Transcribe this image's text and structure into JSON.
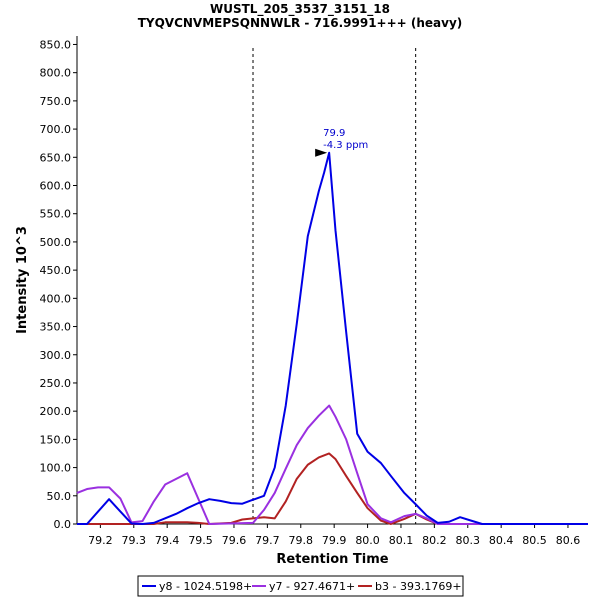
{
  "chart_data": {
    "type": "line",
    "title": "WUSTL_205_3537_3151_18",
    "subtitle": "TYQVCNVMEPSQNNWLR - 716.9991+++ (heavy)",
    "xlabel": "Retention Time",
    "ylabel": "Intensity 10^3",
    "xlim": [
      79.13,
      80.66
    ],
    "ylim": [
      0,
      865
    ],
    "x_ticks": [
      79.2,
      79.3,
      79.4,
      79.5,
      79.6,
      79.7,
      79.8,
      79.9,
      80.0,
      80.1,
      80.2,
      80.3,
      80.4,
      80.5,
      80.6
    ],
    "x_tick_labels": [
      "79.2",
      "79.3",
      "79.4",
      "79.5",
      "79.6",
      "79.7",
      "79.8",
      "79.9",
      "80.0",
      "80.1",
      "80.2",
      "80.3",
      "80.4",
      "80.5",
      "80.6"
    ],
    "y_ticks": [
      0,
      50,
      100,
      150,
      200,
      250,
      300,
      350,
      400,
      450,
      500,
      550,
      600,
      650,
      700,
      750,
      800,
      850
    ],
    "y_tick_labels": [
      "0.0",
      "50.0",
      "100.0",
      "150.0",
      "200.0",
      "250.0",
      "300.0",
      "350.0",
      "400.0",
      "450.0",
      "500.0",
      "550.0",
      "600.0",
      "650.0",
      "700.0",
      "750.0",
      "800.0",
      "850.0"
    ],
    "grid": false,
    "legend_position": "bottom",
    "integration_boundaries": [
      79.657,
      80.144
    ],
    "peak_annotation": {
      "x": 79.885,
      "y": 658,
      "label_rt": "79.9",
      "label_ppm": "-4.3 ppm",
      "color": "#0000cc"
    },
    "series": [
      {
        "name": "y8 - 1024.5198+",
        "color": "#0000e6",
        "points": [
          [
            79.13,
            0
          ],
          [
            79.16,
            0
          ],
          [
            79.193,
            22
          ],
          [
            79.226,
            44
          ],
          [
            79.26,
            22
          ],
          [
            79.293,
            1
          ],
          [
            79.326,
            0
          ],
          [
            79.36,
            2
          ],
          [
            79.394,
            10
          ],
          [
            79.427,
            18
          ],
          [
            79.46,
            28
          ],
          [
            79.493,
            37
          ],
          [
            79.526,
            44
          ],
          [
            79.559,
            41
          ],
          [
            79.592,
            37
          ],
          [
            79.625,
            36
          ],
          [
            79.657,
            43
          ],
          [
            79.69,
            50
          ],
          [
            79.722,
            100
          ],
          [
            79.755,
            210
          ],
          [
            79.788,
            355
          ],
          [
            79.821,
            510
          ],
          [
            79.854,
            590
          ],
          [
            79.87,
            623
          ],
          [
            79.885,
            658
          ],
          [
            79.904,
            520
          ],
          [
            79.936,
            340
          ],
          [
            79.969,
            160
          ],
          [
            80.0,
            128
          ],
          [
            80.04,
            108
          ],
          [
            80.07,
            85
          ],
          [
            80.11,
            55
          ],
          [
            80.144,
            35
          ],
          [
            80.177,
            15
          ],
          [
            80.21,
            2
          ],
          [
            80.244,
            4
          ],
          [
            80.277,
            12
          ],
          [
            80.31,
            6
          ],
          [
            80.343,
            0
          ],
          [
            80.66,
            0
          ]
        ]
      },
      {
        "name": "y7 - 927.4671+",
        "color": "#9a30e0",
        "points": [
          [
            79.13,
            55
          ],
          [
            79.16,
            62
          ],
          [
            79.193,
            65
          ],
          [
            79.226,
            65
          ],
          [
            79.26,
            45
          ],
          [
            79.293,
            3
          ],
          [
            79.326,
            5
          ],
          [
            79.36,
            40
          ],
          [
            79.394,
            70
          ],
          [
            79.427,
            80
          ],
          [
            79.46,
            90
          ],
          [
            79.493,
            45
          ],
          [
            79.526,
            0
          ],
          [
            79.657,
            2
          ],
          [
            79.69,
            25
          ],
          [
            79.722,
            55
          ],
          [
            79.755,
            98
          ],
          [
            79.788,
            140
          ],
          [
            79.821,
            170
          ],
          [
            79.854,
            192
          ],
          [
            79.885,
            210
          ],
          [
            79.904,
            190
          ],
          [
            79.936,
            150
          ],
          [
            79.969,
            90
          ],
          [
            80.0,
            35
          ],
          [
            80.04,
            10
          ],
          [
            80.07,
            3
          ],
          [
            80.11,
            14
          ],
          [
            80.144,
            18
          ],
          [
            80.177,
            10
          ],
          [
            80.21,
            0
          ],
          [
            80.66,
            0
          ]
        ]
      },
      {
        "name": "b3 - 393.1769+",
        "color": "#b22222",
        "points": [
          [
            79.13,
            0
          ],
          [
            79.326,
            0
          ],
          [
            79.36,
            0
          ],
          [
            79.394,
            3
          ],
          [
            79.427,
            3
          ],
          [
            79.46,
            3
          ],
          [
            79.493,
            2
          ],
          [
            79.526,
            0
          ],
          [
            79.592,
            2
          ],
          [
            79.625,
            8
          ],
          [
            79.657,
            10
          ],
          [
            79.69,
            12
          ],
          [
            79.722,
            10
          ],
          [
            79.755,
            40
          ],
          [
            79.788,
            80
          ],
          [
            79.821,
            105
          ],
          [
            79.854,
            118
          ],
          [
            79.885,
            125
          ],
          [
            79.904,
            115
          ],
          [
            79.936,
            85
          ],
          [
            79.969,
            55
          ],
          [
            80.0,
            28
          ],
          [
            80.04,
            6
          ],
          [
            80.07,
            0
          ],
          [
            80.11,
            9
          ],
          [
            80.144,
            18
          ],
          [
            80.177,
            8
          ],
          [
            80.21,
            0
          ],
          [
            80.66,
            0
          ]
        ]
      }
    ]
  }
}
